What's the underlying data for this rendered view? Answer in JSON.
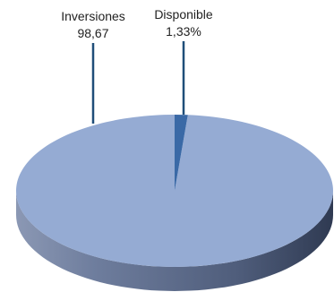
{
  "chart_data": {
    "type": "pie",
    "style": "3d",
    "slices": [
      {
        "label": "Inversiones",
        "value_label": "98,67",
        "value": 98.67,
        "color": "#95abd3"
      },
      {
        "label": "Disponible",
        "value_label": "1,33%",
        "value": 1.33,
        "color": "#3a69a6"
      }
    ],
    "side_color": "#5a6b8c",
    "leader_line_color": "#1f4e79",
    "legend": "none"
  }
}
